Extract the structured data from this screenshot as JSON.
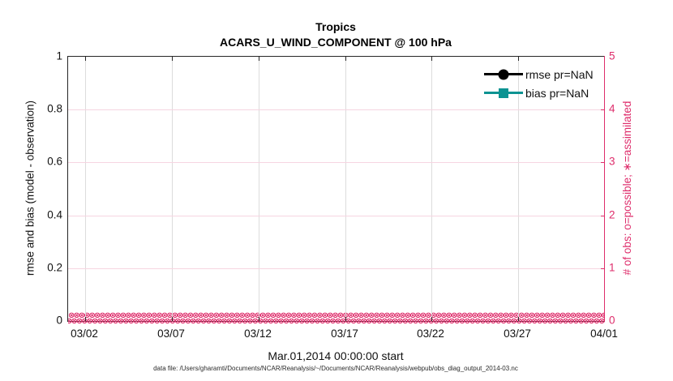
{
  "figure": {
    "title_line1": "Tropics",
    "title_line2": "ACARS_U_WIND_COMPONENT @ 100 hPa",
    "xlabel": "Mar.01,2014 00:00:00 start",
    "caption": "data file: /Users/gharamti/Documents/NCAR/Reanalysis/~/Documents/NCAR/Reanalysis/webpub/obs_diag_output_2014-03.nc",
    "colors": {
      "obs_axis_magenta": "#de2d6b",
      "grid_pink": "#f6d5e1",
      "grid_gray": "#dcdcdc",
      "rmse_black": "#000000",
      "bias_teal": "#0c9392",
      "axis_dark": "#262626"
    },
    "left_axis": {
      "label": "rmse and bias (model - observation)",
      "tick_labels": [
        "0",
        "0.2",
        "0.4",
        "0.6",
        "0.8",
        "1"
      ],
      "tick_values": [
        0,
        0.2,
        0.4,
        0.6,
        0.8,
        1
      ],
      "range": [
        0,
        1
      ]
    },
    "right_axis": {
      "label": "# of obs: o=possible; ∗=assimilated",
      "tick_labels": [
        "0",
        "1",
        "2",
        "3",
        "4",
        "5"
      ],
      "tick_values": [
        0,
        1,
        2,
        3,
        4,
        5
      ],
      "range": [
        0,
        5
      ]
    },
    "x_axis": {
      "tick_labels": [
        "03/02",
        "03/07",
        "03/12",
        "03/17",
        "03/22",
        "03/27",
        "04/01"
      ],
      "tick_day_offsets": [
        1,
        6,
        11,
        16,
        21,
        26,
        31
      ],
      "span_days": 31
    },
    "legend": [
      {
        "label": "rmse pr=NaN",
        "marker": "circle",
        "color": "#000000"
      },
      {
        "label": "bias pr=NaN",
        "marker": "square",
        "color": "#0c9392"
      }
    ],
    "band": {
      "glyph": "⊗",
      "repeat": 130
    }
  },
  "chart_data": {
    "type": "line",
    "title": "Tropics — ACARS_U_WIND_COMPONENT @ 100 hPa",
    "xlabel": "Mar.01,2014 00:00:00 start",
    "ylabel_left": "rmse and bias (model - observation)",
    "ylabel_right": "# of obs: o=possible; *=assimilated",
    "x_tick_labels": [
      "03/02",
      "03/07",
      "03/12",
      "03/17",
      "03/22",
      "03/27",
      "04/01"
    ],
    "x_range": [
      "2014-03-01 00:00",
      "2014-04-01 00:00"
    ],
    "ylim_left": [
      0,
      1
    ],
    "ylim_right": [
      0,
      5
    ],
    "grid": true,
    "legend_position": "upper right, no box",
    "series": [
      {
        "name": "rmse pr=NaN",
        "axis": "left",
        "values": "all NaN (no line drawn)"
      },
      {
        "name": "bias pr=NaN",
        "axis": "left",
        "values": "all NaN (no line drawn)"
      },
      {
        "name": "# of obs possible (o markers)",
        "axis": "right",
        "values": "0 for every time bin Mar 01 - Apr 01"
      },
      {
        "name": "# of obs assimilated (* markers)",
        "axis": "right",
        "values": "0 for every time bin Mar 01 - Apr 01"
      }
    ]
  }
}
